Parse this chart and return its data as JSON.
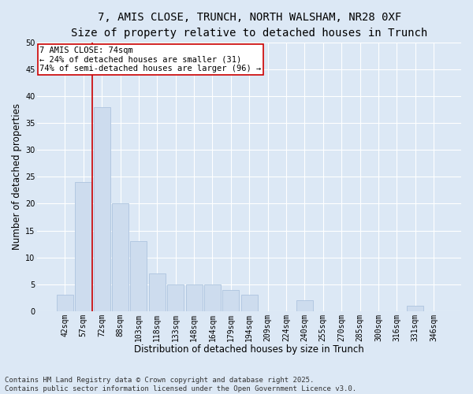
{
  "title_line1": "7, AMIS CLOSE, TRUNCH, NORTH WALSHAM, NR28 0XF",
  "title_line2": "Size of property relative to detached houses in Trunch",
  "xlabel": "Distribution of detached houses by size in Trunch",
  "ylabel": "Number of detached properties",
  "categories": [
    "42sqm",
    "57sqm",
    "72sqm",
    "88sqm",
    "103sqm",
    "118sqm",
    "133sqm",
    "148sqm",
    "164sqm",
    "179sqm",
    "194sqm",
    "209sqm",
    "224sqm",
    "240sqm",
    "255sqm",
    "270sqm",
    "285sqm",
    "300sqm",
    "316sqm",
    "331sqm",
    "346sqm"
  ],
  "values": [
    3,
    24,
    38,
    20,
    13,
    7,
    5,
    5,
    5,
    4,
    3,
    0,
    0,
    2,
    0,
    0,
    0,
    0,
    0,
    1,
    0
  ],
  "bar_color": "#cddcee",
  "bar_edge_color": "#adc4de",
  "vline_color": "#cc0000",
  "vline_index": 1.5,
  "annotation_text": "7 AMIS CLOSE: 74sqm\n← 24% of detached houses are smaller (31)\n74% of semi-detached houses are larger (96) →",
  "annotation_box_facecolor": "#ffffff",
  "annotation_box_edgecolor": "#cc0000",
  "ylim": [
    0,
    50
  ],
  "yticks": [
    0,
    5,
    10,
    15,
    20,
    25,
    30,
    35,
    40,
    45,
    50
  ],
  "background_color": "#dce8f5",
  "grid_color": "#ffffff",
  "footer": "Contains HM Land Registry data © Crown copyright and database right 2025.\nContains public sector information licensed under the Open Government Licence v3.0.",
  "title_fontsize": 10,
  "subtitle_fontsize": 9,
  "axis_label_fontsize": 8.5,
  "tick_fontsize": 7,
  "annotation_fontsize": 7.5,
  "footer_fontsize": 6.5
}
